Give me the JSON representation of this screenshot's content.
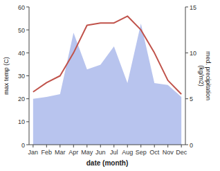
{
  "chart_data": {
    "type": "line",
    "xlabel": "date (month)",
    "ylabel": "max temp (C)",
    "y2label": "med. precipitation\n(kg/m2)",
    "categories": [
      "Jan",
      "Feb",
      "Mar",
      "Apr",
      "May",
      "Jun",
      "Jul",
      "Aug",
      "Sep",
      "Oct",
      "Nov",
      "Dec"
    ],
    "series": [
      {
        "type": "area",
        "axis": "y2",
        "color": "#b8c4ee",
        "values": [
          5.0,
          5.2,
          5.5,
          12.2,
          8.2,
          8.7,
          10.7,
          6.7,
          13.2,
          6.7,
          6.5,
          5.2
        ]
      },
      {
        "type": "line",
        "color": "#c0524a",
        "values": [
          23,
          27,
          30,
          40,
          52,
          53,
          53,
          56,
          50,
          40,
          28,
          22
        ]
      }
    ],
    "ylim": [
      0,
      60
    ],
    "yticks": [
      0,
      10,
      20,
      30,
      40,
      50,
      60
    ],
    "y2lim": [
      0,
      15
    ],
    "y2ticks": [
      0,
      5,
      10,
      15
    ]
  }
}
